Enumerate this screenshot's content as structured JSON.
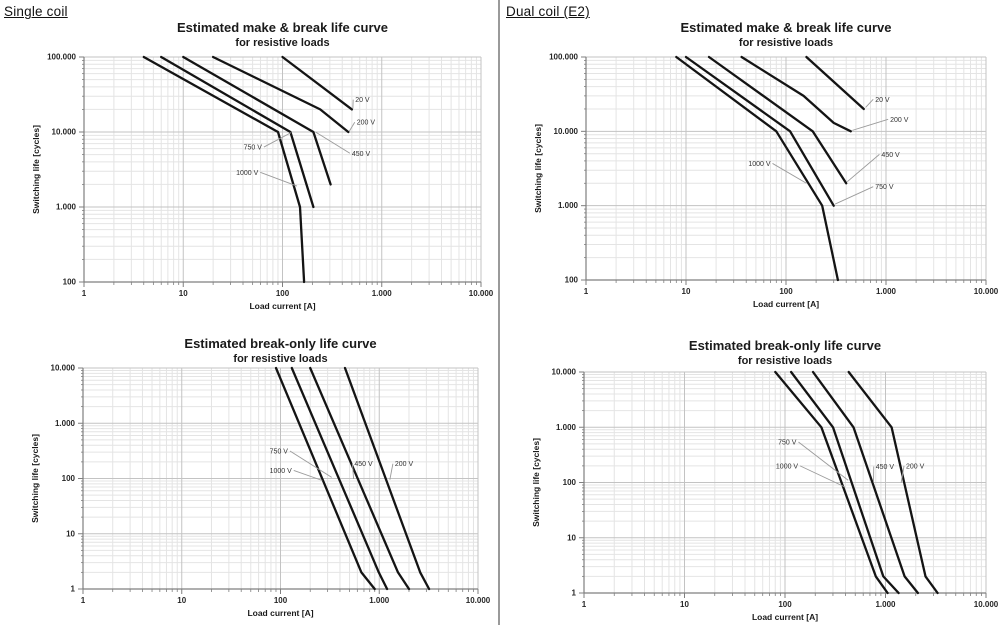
{
  "page": {
    "left_header": "Single coil",
    "right_header": "Dual coil (E2)",
    "colors": {
      "curve": "#141414",
      "grid_minor": "#e4e4e4",
      "grid_major": "#c3c3c3",
      "axis": "#7f7f7f",
      "leader": "#9b9b9b"
    }
  },
  "chart_data": [
    {
      "id": "single-coil-make-break",
      "type": "line",
      "title": "Estimated make & break life curve",
      "subtitle": "for resistive loads",
      "xlabel": "Load current [A]",
      "ylabel": "Switching life [cycles]",
      "log_x": true,
      "log_y": true,
      "grid": true,
      "xlim": [
        1,
        10000
      ],
      "ylim": [
        100,
        100000
      ],
      "x_tick_labels": [
        "1",
        "10",
        "100",
        "1.000",
        "10.000"
      ],
      "y_tick_labels": [
        "100",
        "1.000",
        "10.000",
        "100.000"
      ],
      "series": [
        {
          "name": "20 V",
          "points": [
            [
              100,
              100000
            ],
            [
              500,
              20000
            ]
          ]
        },
        {
          "name": "200 V",
          "points": [
            [
              20,
              100000
            ],
            [
              240,
              20000
            ],
            [
              460,
              10000
            ]
          ]
        },
        {
          "name": "450 V",
          "points": [
            [
              10,
              100000
            ],
            [
              205,
              10000
            ],
            [
              305,
              2000
            ]
          ]
        },
        {
          "name": "750 V",
          "points": [
            [
              6,
              100000
            ],
            [
              120,
              10000
            ],
            [
              205,
              1000
            ]
          ]
        },
        {
          "name": "1000 V",
          "points": [
            [
              4,
              100000
            ],
            [
              90,
              10000
            ],
            [
              150,
              1000
            ],
            [
              165,
              100
            ]
          ]
        }
      ],
      "annotations": [
        {
          "text": "20 V",
          "anchor": "start",
          "label_xy": [
            540,
            27000
          ],
          "target_xy": [
            512,
            20500
          ]
        },
        {
          "text": "200 V",
          "anchor": "start",
          "label_xy": [
            560,
            13500
          ],
          "target_xy": [
            470,
            10200
          ]
        },
        {
          "text": "450 V",
          "anchor": "start",
          "label_xy": [
            500,
            5200
          ],
          "target_xy": [
            215,
            10000
          ]
        },
        {
          "text": "750 V",
          "anchor": "end",
          "label_xy": [
            62,
            6300
          ],
          "target_xy": [
            122,
            9800
          ]
        },
        {
          "text": "1000 V",
          "anchor": "end",
          "label_xy": [
            57,
            2900
          ],
          "target_xy": [
            140,
            1900
          ]
        }
      ]
    },
    {
      "id": "dual-coil-make-break",
      "type": "line",
      "title": "Estimated make & break life curve",
      "subtitle": "for resistive loads",
      "xlabel": "Load current [A]",
      "ylabel": "Switching life [cycles]",
      "log_x": true,
      "log_y": true,
      "grid": true,
      "xlim": [
        1,
        10000
      ],
      "ylim": [
        100,
        100000
      ],
      "x_tick_labels": [
        "1",
        "10",
        "100",
        "1.000",
        "10.000"
      ],
      "y_tick_labels": [
        "100",
        "1.000",
        "10.000",
        "100.000"
      ],
      "series": [
        {
          "name": "20 V",
          "points": [
            [
              160,
              100000
            ],
            [
              600,
              20000
            ]
          ]
        },
        {
          "name": "200 V",
          "points": [
            [
              36,
              100000
            ],
            [
              150,
              30000
            ],
            [
              300,
              13000
            ],
            [
              445,
              10000
            ]
          ]
        },
        {
          "name": "450 V",
          "points": [
            [
              17,
              100000
            ],
            [
              185,
              10000
            ],
            [
              400,
              2000
            ]
          ]
        },
        {
          "name": "750 V",
          "points": [
            [
              10,
              100000
            ],
            [
              110,
              10000
            ],
            [
              300,
              1000
            ]
          ]
        },
        {
          "name": "1000 V",
          "points": [
            [
              8,
              100000
            ],
            [
              80,
              10000
            ],
            [
              230,
              1000
            ],
            [
              330,
              100
            ]
          ]
        }
      ],
      "annotations": [
        {
          "text": "20 V",
          "anchor": "start",
          "label_xy": [
            780,
            27000
          ],
          "target_xy": [
            625,
            21000
          ]
        },
        {
          "text": "200 V",
          "anchor": "start",
          "label_xy": [
            1100,
            14500
          ],
          "target_xy": [
            460,
            10300
          ]
        },
        {
          "text": "450 V",
          "anchor": "start",
          "label_xy": [
            900,
            4900
          ],
          "target_xy": [
            410,
            2100
          ]
        },
        {
          "text": "750 V",
          "anchor": "start",
          "label_xy": [
            780,
            1800
          ],
          "target_xy": [
            310,
            1050
          ]
        },
        {
          "text": "1000 V",
          "anchor": "end",
          "label_xy": [
            70,
            3700
          ],
          "target_xy": [
            160,
            2000
          ]
        }
      ]
    },
    {
      "id": "single-coil-break-only",
      "type": "line",
      "title": "Estimated break-only life curve",
      "subtitle": "for resistive loads",
      "xlabel": "Load current [A]",
      "ylabel": "Switching life [cycles]",
      "log_x": true,
      "log_y": true,
      "grid": true,
      "xlim": [
        1,
        10000
      ],
      "ylim": [
        1,
        10000
      ],
      "x_tick_labels": [
        "1",
        "10",
        "100",
        "1.000",
        "10.000"
      ],
      "y_tick_labels": [
        "1",
        "10",
        "100",
        "1.000",
        "10.000"
      ],
      "series": [
        {
          "name": "200 V",
          "points": [
            [
              450,
              10000
            ],
            [
              2600,
              2
            ],
            [
              3200,
              1
            ]
          ]
        },
        {
          "name": "450 V",
          "points": [
            [
              200,
              10000
            ],
            [
              1550,
              2
            ],
            [
              2000,
              1
            ]
          ]
        },
        {
          "name": "750 V",
          "points": [
            [
              130,
              10000
            ],
            [
              990,
              2
            ],
            [
              1200,
              1
            ]
          ]
        },
        {
          "name": "1000 V",
          "points": [
            [
              90,
              10000
            ],
            [
              660,
              2
            ],
            [
              900,
              1
            ]
          ]
        }
      ],
      "annotations": [
        {
          "text": "750 V",
          "anchor": "end",
          "label_xy": [
            119,
            315
          ],
          "target_xy": [
            330,
            105
          ]
        },
        {
          "text": "1000 V",
          "anchor": "end",
          "label_xy": [
            130,
            140
          ],
          "target_xy": [
            265,
            92
          ]
        },
        {
          "text": "450 V",
          "anchor": "start",
          "label_xy": [
            560,
            185
          ],
          "target_xy": [
            550,
            98
          ]
        },
        {
          "text": "200 V",
          "anchor": "start",
          "label_xy": [
            1440,
            185
          ],
          "target_xy": [
            1280,
            95
          ]
        }
      ]
    },
    {
      "id": "dual-coil-break-only",
      "type": "line",
      "title": "Estimated break-only life curve",
      "subtitle": "for resistive loads",
      "xlabel": "Load current [A]",
      "ylabel": "Switching life [cycles]",
      "log_x": true,
      "log_y": true,
      "grid": true,
      "xlim": [
        1,
        10000
      ],
      "ylim": [
        1,
        10000
      ],
      "x_tick_labels": [
        "1",
        "10",
        "100",
        "1.000",
        "10.000"
      ],
      "y_tick_labels": [
        "1",
        "10",
        "100",
        "1.000",
        "10.000"
      ],
      "series": [
        {
          "name": "200 V",
          "points": [
            [
              430,
              10000
            ],
            [
              1150,
              1000
            ],
            [
              2500,
              2
            ],
            [
              3300,
              1
            ]
          ]
        },
        {
          "name": "450 V",
          "points": [
            [
              190,
              10000
            ],
            [
              480,
              1000
            ],
            [
              1550,
              2
            ],
            [
              2100,
              1
            ]
          ]
        },
        {
          "name": "750 V",
          "points": [
            [
              115,
              10000
            ],
            [
              300,
              1000
            ],
            [
              950,
              2
            ],
            [
              1350,
              1
            ]
          ]
        },
        {
          "name": "1000 V",
          "points": [
            [
              80,
              10000
            ],
            [
              230,
              1000
            ],
            [
              800,
              2
            ],
            [
              1050,
              1
            ]
          ]
        }
      ],
      "annotations": [
        {
          "text": "750 V",
          "anchor": "end",
          "label_xy": [
            130,
            540
          ],
          "target_xy": [
            425,
            110
          ]
        },
        {
          "text": "1000 V",
          "anchor": "end",
          "label_xy": [
            135,
            200
          ],
          "target_xy": [
            395,
            83
          ]
        },
        {
          "text": "450 V",
          "anchor": "start",
          "label_xy": [
            800,
            195
          ],
          "target_xy": [
            760,
            100
          ]
        },
        {
          "text": "200 V",
          "anchor": "start",
          "label_xy": [
            1600,
            200
          ],
          "target_xy": [
            1430,
            98
          ]
        }
      ]
    }
  ]
}
